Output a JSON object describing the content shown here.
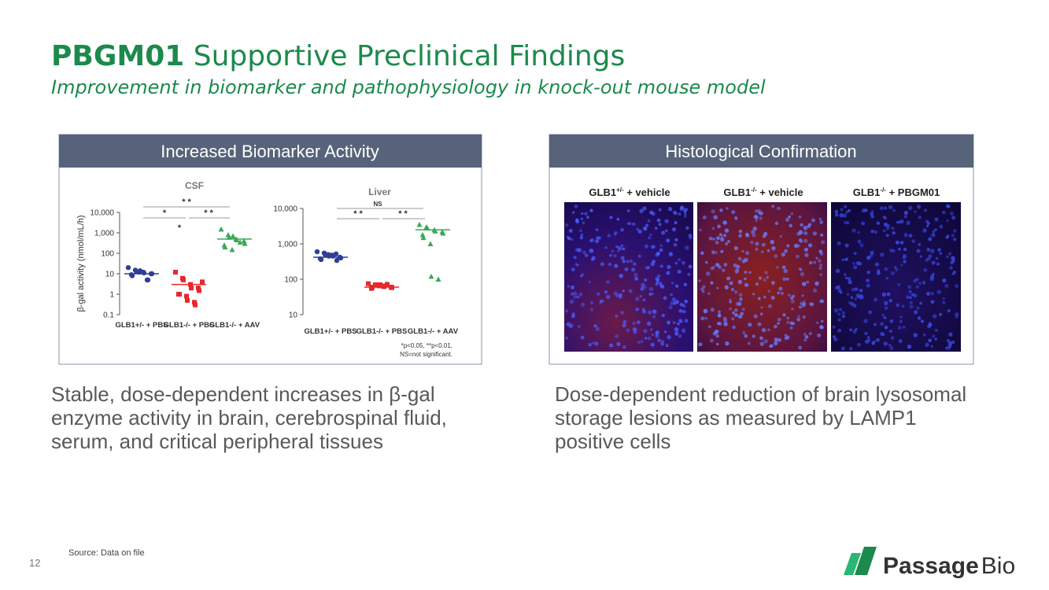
{
  "header": {
    "title_bold": "PBGM01",
    "title_rest": "Supportive Preclinical Findings",
    "subtitle": "Improvement in biomarker and pathophysiology in knock-out mouse model"
  },
  "left_panel": {
    "heading": "Increased Biomarker Activity"
  },
  "right_panel": {
    "heading": "Histological Confirmation",
    "image_labels": [
      {
        "base": "GLB1",
        "sup": "+/-",
        "rest": " + vehicle"
      },
      {
        "base": "GLB1",
        "sup": "-/-",
        "rest": " + vehicle"
      },
      {
        "base": "GLB1",
        "sup": "-/-",
        "rest": " + PBGM01"
      }
    ]
  },
  "chart_data": [
    {
      "type": "strip",
      "title": "CSF",
      "y_label": "β-gal activity (nmol/mL/h)",
      "log_y": true,
      "ylim": [
        0.1,
        10000
      ],
      "yticks": [
        {
          "value": 10000,
          "label": "10,000"
        },
        {
          "value": 1000,
          "label": "1,000"
        },
        100,
        10,
        1,
        0.1
      ],
      "categories": [
        "GLB1+/- + PBS",
        "GLB1-/- + PBS",
        "GLB1-/- + AAV"
      ],
      "series": [
        {
          "color": "#2e3f95",
          "marker": "circle",
          "values": [
            20,
            15,
            13,
            12,
            11,
            10,
            10,
            9,
            8,
            12,
            14,
            5,
            5
          ],
          "mean": 10
        },
        {
          "color": "#e8262b",
          "marker": "square",
          "values": [
            12,
            6,
            5,
            3,
            2,
            2,
            1.5,
            1,
            1,
            0.8,
            0.5,
            0.4,
            0.3,
            4
          ],
          "mean": 3
        },
        {
          "color": "#3aa856",
          "marker": "triangle",
          "values": [
            1500,
            800,
            600,
            500,
            450,
            400,
            300,
            250,
            200,
            150,
            700,
            350
          ],
          "mean": 500
        }
      ],
      "annotations": [
        "* *",
        "*",
        "* *",
        "*"
      ]
    },
    {
      "type": "strip",
      "title": "Liver",
      "log_y": true,
      "ylim": [
        10,
        10000
      ],
      "yticks": [
        {
          "value": 10000,
          "label": "10,000"
        },
        {
          "value": 1000,
          "label": "1,000"
        },
        100,
        10
      ],
      "categories": [
        "GLB1+/- + PBS",
        "GLB1-/- + PBS",
        "GLB1-/- + AAV"
      ],
      "series": [
        {
          "color": "#2e3f95",
          "marker": "circle",
          "values": [
            600,
            550,
            500,
            480,
            450,
            420,
            400,
            380,
            360,
            500,
            450,
            520,
            340
          ],
          "mean": 420
        },
        {
          "color": "#e8262b",
          "marker": "square",
          "values": [
            75,
            70,
            68,
            65,
            62,
            60,
            58,
            55,
            60,
            65,
            70,
            72
          ],
          "mean": 60
        },
        {
          "color": "#3aa856",
          "marker": "triangle",
          "values": [
            3500,
            3000,
            2800,
            2500,
            2300,
            2200,
            2000,
            1800,
            1500,
            1000,
            120,
            100
          ],
          "mean": 2500
        }
      ],
      "annotations": [
        "NS",
        "* *",
        "* *"
      ],
      "footnote": [
        "*p<0.05, **p<0.01,",
        "NS=not significant."
      ]
    }
  ],
  "body_left": [
    "Stable, dose-dependent increases in β-gal",
    "enzyme activity in brain, cerebrospinal fluid,",
    "serum, and critical peripheral tissues"
  ],
  "body_right": [
    "Dose-dependent reduction of brain lysosomal",
    "storage lesions as measured by LAMP1",
    "positive cells"
  ],
  "footer": {
    "source": "Source: Data on file",
    "page": "12",
    "logo_bold": "Passage",
    "logo_rest": "Bio"
  }
}
